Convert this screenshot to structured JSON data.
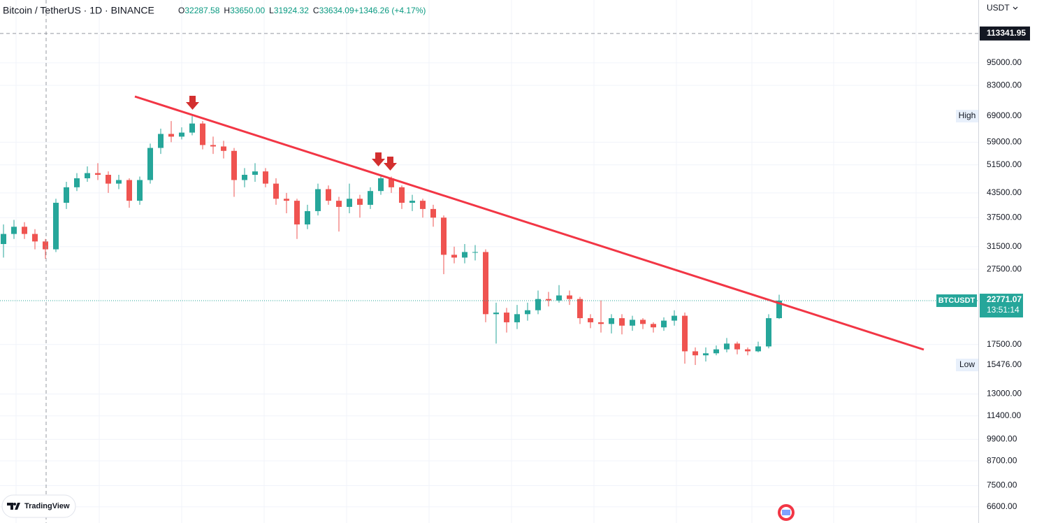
{
  "chart_data": {
    "type": "candlestick",
    "title": "Bitcoin / TetherUS · 1D · BINANCE",
    "legend_values": [
      {
        "label": "O",
        "value": "32287.58"
      },
      {
        "label": "H",
        "value": "33650.00"
      },
      {
        "label": "L",
        "value": "31924.32"
      },
      {
        "label": "C",
        "value": "33634.09"
      },
      {
        "label": "",
        "value": "+1346.26 (+4.17%)"
      }
    ],
    "currency": "USDT",
    "log_scale": true,
    "grid": true,
    "up_color": "#26a69a",
    "down_color": "#ef5350",
    "ylim": [
      5990,
      138600
    ],
    "yticks": [
      {
        "value": 6600,
        "label": "6600.00"
      },
      {
        "value": 7500,
        "label": "7500.00"
      },
      {
        "value": 8700,
        "label": "8700.00"
      },
      {
        "value": 9900,
        "label": "9900.00"
      },
      {
        "value": 11400,
        "label": "11400.00"
      },
      {
        "value": 13000,
        "label": "13000.00"
      },
      {
        "value": 17500,
        "label": "17500.00"
      },
      {
        "value": 27500,
        "label": "27500.00"
      },
      {
        "value": 31500,
        "label": "31500.00"
      },
      {
        "value": 37500,
        "label": "37500.00"
      },
      {
        "value": 43500,
        "label": "43500.00"
      },
      {
        "value": 51500,
        "label": "51500.00"
      },
      {
        "value": 59000,
        "label": "59000.00"
      },
      {
        "value": 83000,
        "label": "83000.00"
      },
      {
        "value": 95000,
        "label": "95000.00"
      }
    ],
    "crosshair": {
      "value": 113341.95,
      "label": "113341.95"
    },
    "high_marker": {
      "name": "High",
      "value": 69000,
      "label": "69000.00"
    },
    "low_marker": {
      "name": "Low",
      "value": 15476,
      "label": "15476.00"
    },
    "last_price": {
      "name": "BTCUSDT",
      "value": 22771.07,
      "label": "22771.07",
      "countdown": "13:51:14"
    },
    "open": [
      32000,
      34000,
      35500,
      34000,
      32500,
      31000,
      41000,
      45000,
      47500,
      49000,
      48500,
      46000,
      47000,
      41500,
      47000,
      57000,
      62000,
      61000,
      62500,
      66000,
      58000,
      57500,
      56000,
      47000,
      48500,
      49500,
      46000,
      42000,
      41500,
      36000,
      39000,
      44500,
      41500,
      40000,
      42000,
      40500,
      44000,
      47500,
      45000,
      41000,
      41500,
      39500,
      37500,
      30000,
      29500,
      30500,
      30500,
      21000,
      21200,
      20000,
      21000,
      21500,
      23000,
      22800,
      23500,
      23000,
      20500,
      20000,
      19800,
      20500,
      19600,
      20300,
      19800,
      19400,
      20200,
      20800,
      16800,
      16400,
      16600,
      17000,
      17600,
      17000,
      16800,
      17300,
      20500
    ],
    "high": [
      36000,
      37000,
      36500,
      35000,
      33000,
      42000,
      46500,
      49000,
      51000,
      52000,
      49500,
      48500,
      47500,
      48000,
      58500,
      64000,
      67000,
      64500,
      69000,
      67000,
      61000,
      59500,
      57000,
      50500,
      52000,
      50500,
      47500,
      43500,
      42000,
      40500,
      46000,
      45500,
      42500,
      46000,
      43000,
      45000,
      48500,
      48000,
      45500,
      43000,
      42000,
      40500,
      38000,
      31500,
      32000,
      31800,
      31000,
      22500,
      21800,
      22200,
      22500,
      24200,
      24000,
      25000,
      24200,
      23300,
      21000,
      22800,
      21000,
      21000,
      20800,
      20500,
      20000,
      20600,
      21500,
      21200,
      17200,
      17200,
      17400,
      18200,
      17800,
      17200,
      17800,
      21000,
      23600
    ],
    "low": [
      29500,
      33000,
      33000,
      31000,
      29300,
      30500,
      39500,
      44000,
      46500,
      47000,
      43500,
      44500,
      39800,
      40500,
      46000,
      55000,
      59000,
      60000,
      61500,
      56500,
      55000,
      53500,
      42500,
      45000,
      46500,
      45000,
      40500,
      38500,
      33000,
      35000,
      38000,
      40500,
      34500,
      38500,
      37500,
      39500,
      43000,
      43500,
      39500,
      39000,
      37500,
      35500,
      26700,
      28500,
      28500,
      29000,
      20000,
      17600,
      18800,
      19200,
      20200,
      21000,
      22000,
      22500,
      22200,
      19800,
      19300,
      18800,
      18700,
      18600,
      19000,
      19200,
      18800,
      19000,
      19600,
      15600,
      15476,
      15800,
      16400,
      16700,
      16500,
      16400,
      16700,
      17100,
      20400
    ],
    "close": [
      34000,
      35500,
      34000,
      32500,
      31000,
      41000,
      45000,
      47500,
      49000,
      48500,
      46000,
      47000,
      41500,
      47000,
      57000,
      62000,
      61000,
      62500,
      66000,
      58000,
      57500,
      56000,
      47000,
      48500,
      49500,
      46000,
      42000,
      41500,
      36000,
      39000,
      44500,
      41500,
      40000,
      42000,
      40500,
      44000,
      47500,
      45000,
      41000,
      41500,
      39500,
      37500,
      30000,
      29500,
      30500,
      30500,
      21000,
      21200,
      20000,
      21000,
      21500,
      23000,
      22800,
      23500,
      23000,
      20500,
      20000,
      19800,
      20500,
      19600,
      20300,
      19800,
      19400,
      20200,
      20800,
      16800,
      16400,
      16600,
      17000,
      17600,
      17000,
      16800,
      17300,
      20500,
      22771.07
    ],
    "branding": "TradingView"
  }
}
